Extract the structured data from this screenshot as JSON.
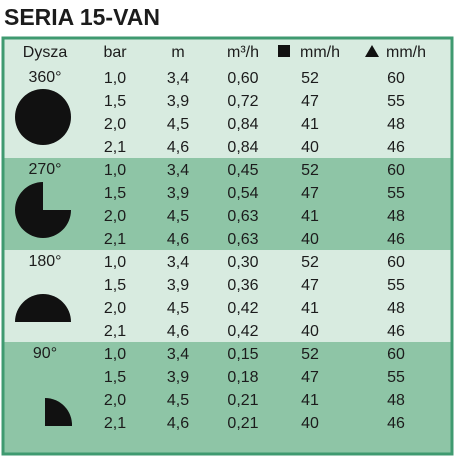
{
  "title": "SERIA 15-VAN",
  "table": {
    "header": [
      "Dysza",
      "bar",
      "m",
      "m³/h",
      "mm/h",
      "mm/h"
    ],
    "groups": [
      {
        "nozzle": "360°",
        "rows": [
          [
            "1,0",
            "3,4",
            "0,60",
            "52",
            "60"
          ],
          [
            "1,5",
            "3,9",
            "0,72",
            "47",
            "55"
          ],
          [
            "2,0",
            "4,5",
            "0,84",
            "41",
            "48"
          ],
          [
            "2,1",
            "4,6",
            "0,84",
            "40",
            "46"
          ]
        ]
      },
      {
        "nozzle": "270°",
        "rows": [
          [
            "1,0",
            "3,4",
            "0,45",
            "52",
            "60"
          ],
          [
            "1,5",
            "3,9",
            "0,54",
            "47",
            "55"
          ],
          [
            "2,0",
            "4,5",
            "0,63",
            "41",
            "48"
          ],
          [
            "2,1",
            "4,6",
            "0,63",
            "40",
            "46"
          ]
        ]
      },
      {
        "nozzle": "180°",
        "rows": [
          [
            "1,0",
            "3,4",
            "0,30",
            "52",
            "60"
          ],
          [
            "1,5",
            "3,9",
            "0,36",
            "47",
            "55"
          ],
          [
            "2,0",
            "4,5",
            "0,42",
            "41",
            "48"
          ],
          [
            "2,1",
            "4,6",
            "0,42",
            "40",
            "46"
          ]
        ]
      },
      {
        "nozzle": "90°",
        "rows": [
          [
            "1,0",
            "3,4",
            "0,15",
            "52",
            "60"
          ],
          [
            "1,5",
            "3,9",
            "0,18",
            "47",
            "55"
          ],
          [
            "2,0",
            "4,5",
            "0,21",
            "41",
            "48"
          ],
          [
            "2,1",
            "4,6",
            "0,21",
            "40",
            "46"
          ]
        ]
      }
    ]
  }
}
